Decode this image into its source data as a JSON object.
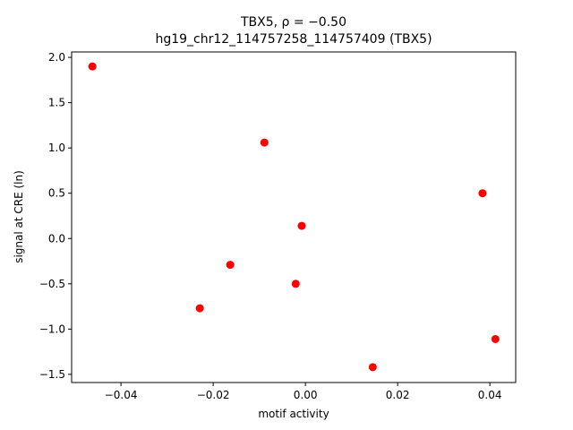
{
  "chart_data": {
    "type": "scatter",
    "title": "TBX5, ρ = −0.50",
    "subtitle": "hg19_chr12_114757258_114757409 (TBX5)",
    "x_label": "motif activity",
    "y_label": "signal at CRE (ln)",
    "color": "#ff0000",
    "x": [
      -0.0462,
      -0.0089,
      0.0384,
      -0.0008,
      -0.0163,
      -0.0021,
      -0.0229,
      0.0412,
      0.0146
    ],
    "y": [
      1.9,
      1.06,
      0.5,
      0.14,
      -0.29,
      -0.5,
      -0.77,
      -1.11,
      -1.42
    ],
    "xlim": [
      -0.0507,
      0.0456
    ],
    "ylim": [
      -1.59,
      2.06
    ],
    "xticks": [
      {
        "value": -0.04,
        "label": "−0.04"
      },
      {
        "value": -0.02,
        "label": "−0.02"
      },
      {
        "value": 0,
        "label": "0.00"
      },
      {
        "value": 0.02,
        "label": "0.02"
      },
      {
        "value": 0.04,
        "label": "0.04"
      }
    ],
    "yticks": [
      {
        "value": -1.5,
        "label": "−1.5"
      },
      {
        "value": -1,
        "label": "−1.0"
      },
      {
        "value": -0.5,
        "label": "−0.5"
      },
      {
        "value": 0,
        "label": "0.0"
      },
      {
        "value": 0.5,
        "label": "0.5"
      },
      {
        "value": 1,
        "label": "1.0"
      },
      {
        "value": 1.5,
        "label": "1.5"
      },
      {
        "value": 2,
        "label": "2.0"
      }
    ],
    "grid": false
  }
}
